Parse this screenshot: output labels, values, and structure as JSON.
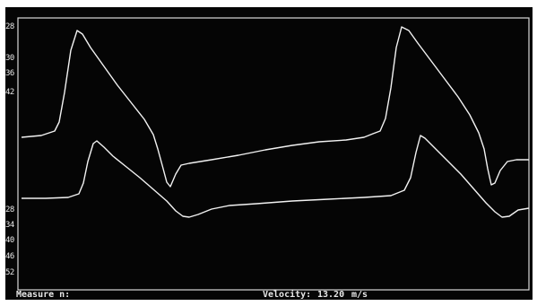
{
  "display": {
    "upper_scale_ticks": [
      "28",
      "30",
      "36",
      "42"
    ],
    "lower_scale_ticks": [
      "28",
      "34",
      "40",
      "46",
      "52"
    ]
  },
  "status_bar": {
    "measure_label": "Measure n:",
    "velocity_label": "Velocity:",
    "velocity_value": "13.20",
    "velocity_unit": "m/s"
  },
  "colors": {
    "screen_background": "#050505",
    "trace": "#f2f2f2",
    "frame": "#d8d8d8"
  }
}
